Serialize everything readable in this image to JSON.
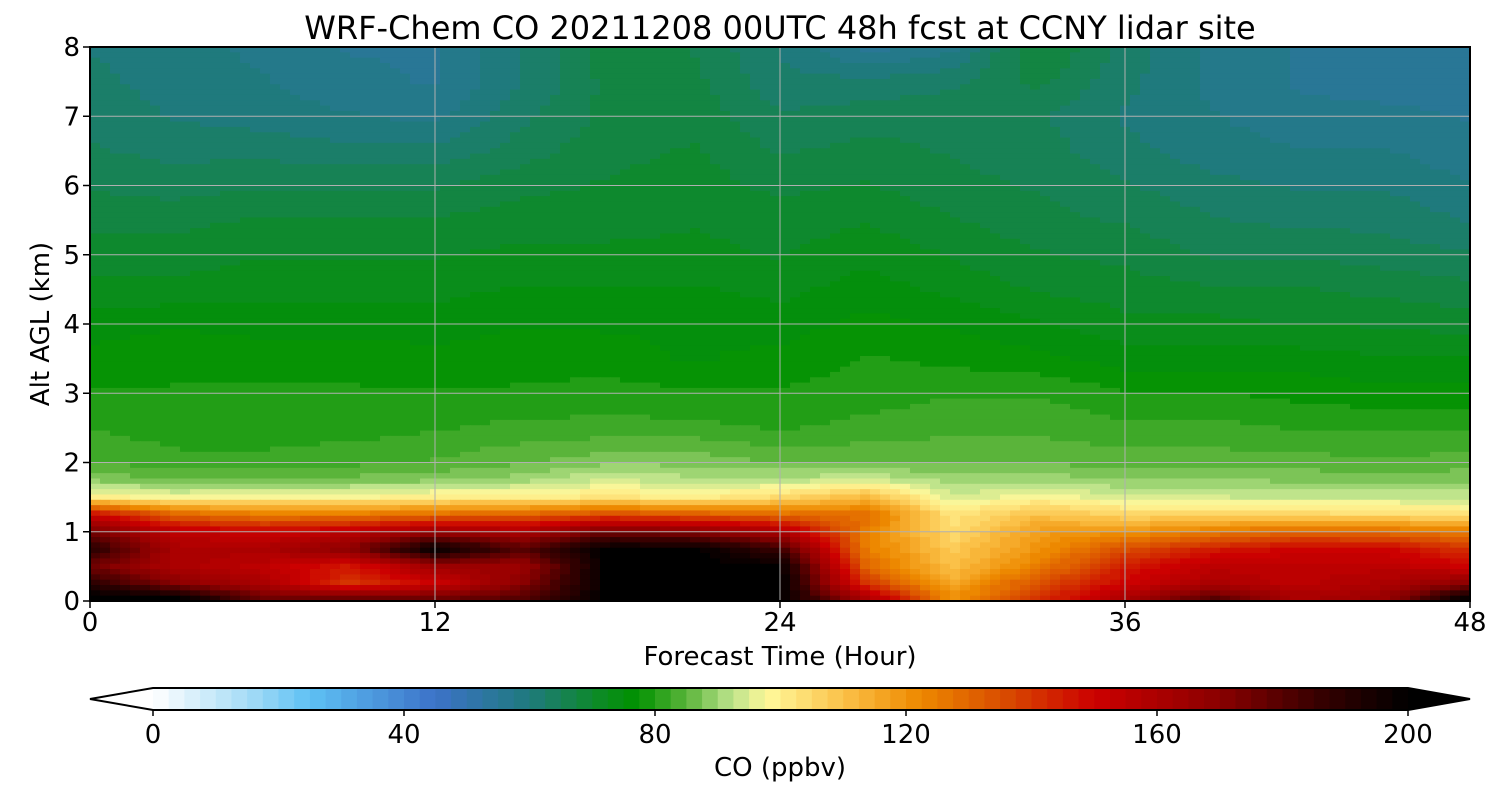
{
  "chart_data": {
    "type": "heatmap",
    "subtype": "filled-contour time-height cross-section",
    "title": "WRF-Chem CO  20211208 00UTC 48h fcst at CCNY lidar site",
    "xlabel": "Forecast Time (Hour)",
    "ylabel": "Alt AGL (km)",
    "xlim": [
      0,
      48
    ],
    "ylim": [
      0,
      8
    ],
    "xticks": [
      0,
      12,
      24,
      36,
      48
    ],
    "yticks": [
      0,
      1,
      2,
      3,
      4,
      5,
      6,
      7,
      8
    ],
    "grid": true,
    "colorbar": {
      "label": "CO  (ppbv)",
      "orientation": "horizontal",
      "placement": "bottom",
      "range": [
        0,
        200
      ],
      "ticks": [
        0,
        40,
        80,
        120,
        160,
        200
      ],
      "extend": "both",
      "color_stops": [
        {
          "value": 0,
          "color": "#ffffff"
        },
        {
          "value": 15,
          "color": "#a7dcf6"
        },
        {
          "value": 25,
          "color": "#5ec1f4"
        },
        {
          "value": 45,
          "color": "#3c72c8"
        },
        {
          "value": 60,
          "color": "#1f7a7d"
        },
        {
          "value": 72,
          "color": "#0b8c1e"
        },
        {
          "value": 77,
          "color": "#009100"
        },
        {
          "value": 85,
          "color": "#5ab43a"
        },
        {
          "value": 92,
          "color": "#b9e28a"
        },
        {
          "value": 98,
          "color": "#fff89a"
        },
        {
          "value": 110,
          "color": "#fbc148"
        },
        {
          "value": 122,
          "color": "#ee8a00"
        },
        {
          "value": 136,
          "color": "#d84a00"
        },
        {
          "value": 150,
          "color": "#cc0000"
        },
        {
          "value": 170,
          "color": "#8a0000"
        },
        {
          "value": 185,
          "color": "#3a0000"
        },
        {
          "value": 200,
          "color": "#000000"
        }
      ]
    },
    "altitudes_km": [
      0.05,
      0.25,
      0.5,
      0.75,
      1.0,
      1.25,
      1.5,
      1.75,
      2.0,
      2.5,
      3.0,
      3.5,
      4.0,
      4.5,
      5.0,
      5.5,
      6.0,
      6.5,
      7.0,
      7.5,
      8.0
    ],
    "times_h": [
      0,
      3,
      6,
      9,
      12,
      15,
      18,
      21,
      24,
      27,
      30,
      33,
      36,
      39,
      42,
      45,
      48
    ],
    "values_ppbv": [
      [
        200,
        200,
        175,
        175,
        175,
        180,
        200,
        200,
        200,
        160,
        120,
        140,
        160,
        180,
        160,
        165,
        200
      ],
      [
        190,
        170,
        160,
        140,
        150,
        170,
        200,
        200,
        200,
        140,
        115,
        135,
        150,
        160,
        155,
        160,
        170
      ],
      [
        175,
        160,
        155,
        145,
        165,
        165,
        200,
        200,
        200,
        130,
        110,
        125,
        145,
        155,
        155,
        155,
        150
      ],
      [
        190,
        160,
        160,
        170,
        200,
        180,
        200,
        200,
        185,
        125,
        108,
        120,
        135,
        145,
        150,
        150,
        140
      ],
      [
        175,
        155,
        150,
        155,
        165,
        160,
        175,
        170,
        160,
        125,
        104,
        118,
        120,
        125,
        130,
        128,
        125
      ],
      [
        150,
        130,
        125,
        125,
        128,
        130,
        135,
        132,
        128,
        128,
        102,
        110,
        105,
        105,
        105,
        104,
        102
      ],
      [
        100,
        97,
        98,
        98,
        100,
        100,
        102,
        100,
        104,
        112,
        94,
        98,
        94,
        94,
        93,
        93,
        93
      ],
      [
        88,
        86,
        86,
        87,
        88,
        90,
        94,
        92,
        92,
        94,
        90,
        90,
        89,
        89,
        88,
        88,
        88
      ],
      [
        84,
        82,
        82,
        83,
        84,
        86,
        88,
        88,
        86,
        86,
        86,
        86,
        85,
        85,
        85,
        84,
        85
      ],
      [
        81,
        80,
        80,
        80,
        81,
        82,
        82,
        82,
        81,
        82,
        83,
        83,
        82,
        82,
        81,
        81,
        81
      ],
      [
        79,
        79,
        79,
        79,
        79,
        79,
        80,
        79,
        79,
        80,
        81,
        81,
        79,
        79,
        78,
        77,
        77
      ],
      [
        77,
        78,
        78,
        78,
        77,
        78,
        77,
        76,
        77,
        79,
        78,
        77,
        75,
        75,
        75,
        74,
        74
      ],
      [
        75,
        76,
        75,
        75,
        75,
        76,
        76,
        76,
        75,
        77,
        76,
        74,
        72,
        72,
        71,
        71,
        70
      ],
      [
        72,
        72,
        73,
        73,
        73,
        74,
        74,
        74,
        73,
        75,
        73,
        71,
        70,
        69,
        69,
        68,
        67
      ],
      [
        70,
        70,
        71,
        71,
        71,
        72,
        72,
        72,
        71,
        73,
        71,
        69,
        68,
        66,
        66,
        65,
        64
      ],
      [
        68,
        68,
        69,
        69,
        69,
        70,
        70,
        71,
        70,
        71,
        69,
        67,
        66,
        64,
        63,
        63,
        61
      ],
      [
        66,
        65,
        66,
        66,
        66,
        68,
        69,
        70,
        68,
        69,
        67,
        66,
        64,
        62,
        61,
        61,
        59
      ],
      [
        64,
        63,
        63,
        62,
        62,
        65,
        68,
        69,
        66,
        67,
        66,
        65,
        62,
        60,
        59,
        59,
        57
      ],
      [
        63,
        61,
        60,
        59,
        58,
        63,
        67,
        68,
        64,
        65,
        66,
        64,
        61,
        59,
        57,
        57,
        56
      ],
      [
        62,
        60,
        59,
        57,
        56,
        61,
        67,
        67,
        62,
        62,
        63,
        67,
        62,
        58,
        56,
        55,
        55
      ],
      [
        61,
        60,
        58,
        56,
        56,
        61,
        68,
        66,
        61,
        55,
        58,
        69,
        63,
        58,
        56,
        54,
        55
      ]
    ]
  }
}
